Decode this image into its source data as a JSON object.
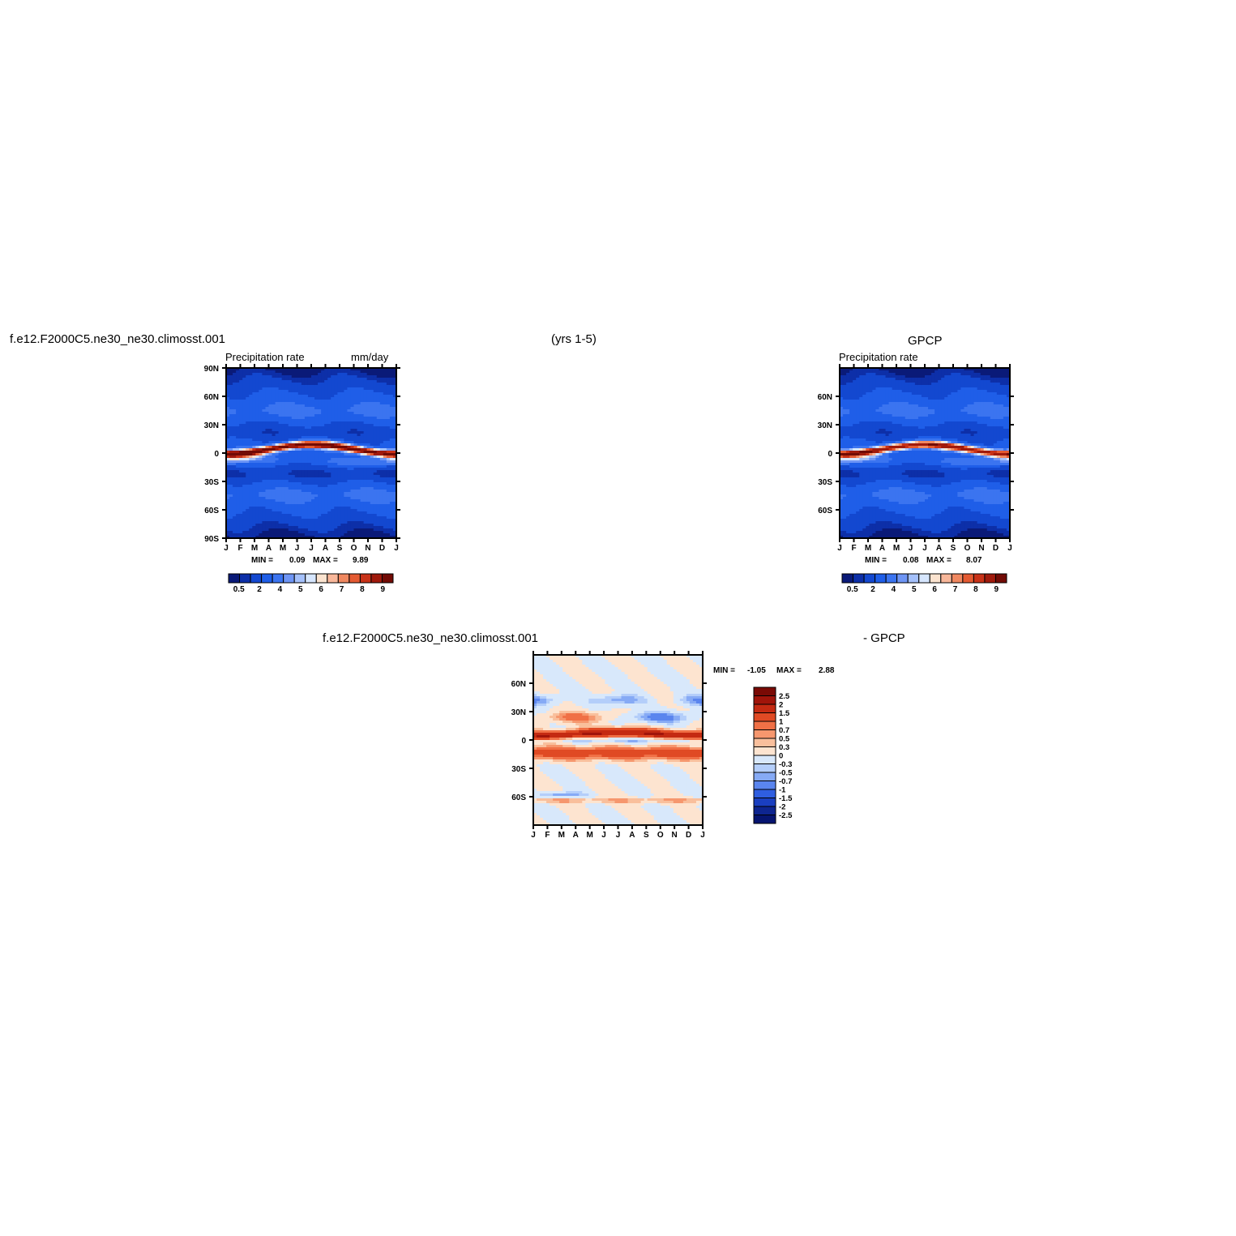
{
  "header": {
    "case_name": "f.e12.F2000C5.ne30_ne30.climosst.001",
    "years": "(yrs 1-5)",
    "obs_name": "GPCP"
  },
  "panels": {
    "model": {
      "variable": "Precipitation rate",
      "units": "mm/day",
      "min_label": "MIN =",
      "min": "0.09",
      "max_label": "MAX =",
      "max": "9.89"
    },
    "obs": {
      "variable": "Precipitation rate",
      "min_label": "MIN =",
      "min": "0.08",
      "max_label": "MAX =",
      "max": "8.07"
    },
    "diff": {
      "title_left": "f.e12.F2000C5.ne30_ne30.climosst.001",
      "title_right": "- GPCP",
      "min_label": "MIN =",
      "min": "-1.05",
      "max_label": "MAX =",
      "max": "2.88"
    }
  },
  "chart_data": [
    {
      "type": "heatmap",
      "title": "f.e12.F2000C5.ne30_ne30.climosst.001 (yrs 1-5) Precipitation rate",
      "units": "mm/day",
      "x_ticks": [
        "J",
        "F",
        "M",
        "A",
        "M",
        "J",
        "J",
        "A",
        "S",
        "O",
        "N",
        "D",
        "J"
      ],
      "y_ticks": [
        "90N",
        "60N",
        "30N",
        "0",
        "30S",
        "60S",
        "90S"
      ],
      "colorbar_labels": [
        "0.5",
        "2",
        "4",
        "5",
        "6",
        "7",
        "8",
        "9"
      ],
      "min": 0.09,
      "max": 9.89,
      "colors": [
        "#0a1a78",
        "#0d2fa8",
        "#1348d0",
        "#1f5ee8",
        "#3b74f0",
        "#6e95f5",
        "#a4c0fb",
        "#d6e6fe",
        "#fbe3cf",
        "#f8b79a",
        "#f08860",
        "#e45a32",
        "#c83218",
        "#a01a0c",
        "#720b05"
      ]
    },
    {
      "type": "heatmap",
      "title": "GPCP Precipitation rate",
      "x_ticks": [
        "J",
        "F",
        "M",
        "A",
        "M",
        "J",
        "J",
        "A",
        "S",
        "O",
        "N",
        "D",
        "J"
      ],
      "y_ticks": [
        "60N",
        "30N",
        "0",
        "30S",
        "60S"
      ],
      "colorbar_labels": [
        "0.5",
        "2",
        "4",
        "5",
        "6",
        "7",
        "8",
        "9"
      ],
      "min": 0.08,
      "max": 8.07
    },
    {
      "type": "heatmap",
      "title": "f.e12.F2000C5.ne30_ne30.climosst.001 - GPCP",
      "x_ticks": [
        "J",
        "F",
        "M",
        "A",
        "M",
        "J",
        "J",
        "A",
        "S",
        "O",
        "N",
        "D",
        "J"
      ],
      "y_ticks": [
        "60N",
        "30N",
        "0",
        "30S",
        "60S"
      ],
      "colorbar_labels": [
        "2.5",
        "2",
        "1.5",
        "1",
        "0.7",
        "0.5",
        "0.3",
        "0",
        "-0.3",
        "-0.5",
        "-0.7",
        "-1",
        "-1.5",
        "-2",
        "-2.5"
      ],
      "min": -1.05,
      "max": 2.88,
      "colors": [
        "#7a0a05",
        "#a0140a",
        "#c42a12",
        "#e04a24",
        "#f07046",
        "#f6976e",
        "#f9bf9c",
        "#fde4d0",
        "#d8e8fb",
        "#b4cefa",
        "#86aaf5",
        "#5a85ee",
        "#2f5ee0",
        "#1a3fc0",
        "#0e2590",
        "#061470"
      ]
    }
  ]
}
